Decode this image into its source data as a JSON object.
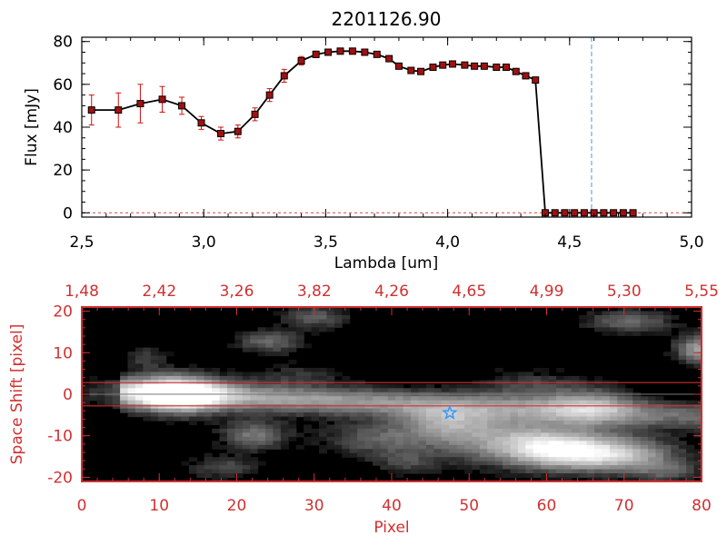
{
  "chart_data": [
    {
      "type": "line",
      "title": "2201126.90",
      "xlabel": "Lambda [um]",
      "ylabel": "Flux [mJy]",
      "xlim": [
        2.5,
        5.0
      ],
      "ylim": [
        -2,
        82
      ],
      "x_ticks": [
        "2.5",
        "3.0",
        "3.5",
        "4.0",
        "4.5",
        "5.0"
      ],
      "y_ticks": [
        "0",
        "20",
        "40",
        "60",
        "80"
      ],
      "reference_line": {
        "x": 4.59,
        "color": "#3aa0d8",
        "style": "dashed"
      },
      "zero_line": {
        "y": 0,
        "color": "#e04040",
        "style": "dashed"
      },
      "line_color": "#000000",
      "marker_color": "#a01010",
      "error_color": "#d01010",
      "series": [
        {
          "x": [
            2.54,
            2.65,
            2.74,
            2.83,
            2.91,
            2.99,
            3.07,
            3.14,
            3.21,
            3.27,
            3.33,
            3.4,
            3.46,
            3.51,
            3.56,
            3.61,
            3.66,
            3.71,
            3.76,
            3.8,
            3.85,
            3.89,
            3.94,
            3.98,
            4.02,
            4.07,
            4.11,
            4.15,
            4.2,
            4.24,
            4.28,
            4.32,
            4.36,
            4.4,
            4.44,
            4.48,
            4.52,
            4.56,
            4.6,
            4.64,
            4.68,
            4.72,
            4.76
          ],
          "y": [
            48,
            48,
            51,
            53,
            50,
            42,
            37,
            38,
            46,
            55,
            64,
            71,
            74,
            75,
            75.5,
            75.5,
            75,
            74,
            72,
            68.5,
            66.5,
            66,
            68,
            69,
            69.5,
            69,
            68.5,
            68.5,
            68,
            68,
            66,
            64,
            62,
            0,
            0,
            0,
            0,
            0,
            0,
            0,
            0,
            0,
            0
          ],
          "yerr": [
            7,
            8,
            9,
            6,
            4,
            3,
            3,
            3,
            3,
            3,
            3,
            2,
            1.5,
            1,
            1,
            1,
            1,
            1,
            1,
            1,
            1,
            1,
            1,
            1,
            1,
            1,
            1,
            1,
            1,
            1,
            1,
            1,
            1,
            0,
            0,
            0,
            0,
            0,
            0,
            0,
            0,
            0,
            0
          ]
        }
      ]
    },
    {
      "type": "heatmap",
      "xlabel": "Pixel",
      "ylabel": "Space Shift [pixel]",
      "xlim": [
        0,
        80
      ],
      "ylim": [
        -21,
        21
      ],
      "x_ticks": [
        "0",
        "10",
        "20",
        "30",
        "40",
        "50",
        "60",
        "70",
        "80"
      ],
      "y_ticks": [
        "-20",
        "-10",
        "0",
        "10",
        "20"
      ],
      "top_axis_label_values": [
        "1.48",
        "2.42",
        "3.26",
        "3.82",
        "4.26",
        "4.65",
        "4.99",
        "5.30",
        "5.55"
      ],
      "axis_color": "#d03030",
      "extraction_band": [
        -2.8,
        2.8
      ],
      "marker": {
        "x": 47.5,
        "y": -4.5,
        "shape": "star",
        "color": "#3399ff"
      },
      "colormap": "grayscale",
      "trace": {
        "center_x": 12,
        "center_y": 0,
        "slope_per_pixel": -0.08
      },
      "blobs": [
        {
          "x": 12,
          "y": 0,
          "amplitude": 1.0,
          "sx": 4,
          "sy": 3
        },
        {
          "x": 22,
          "y": -10,
          "amplitude": 0.4,
          "sx": 3,
          "sy": 2.5
        },
        {
          "x": 24,
          "y": 13,
          "amplitude": 0.35,
          "sx": 3,
          "sy": 2
        },
        {
          "x": 18,
          "y": -18,
          "amplitude": 0.25,
          "sx": 3,
          "sy": 2
        },
        {
          "x": 28,
          "y": 5,
          "amplitude": 0.15,
          "sx": 4,
          "sy": 2
        },
        {
          "x": 38,
          "y": -11,
          "amplitude": 0.3,
          "sx": 5,
          "sy": 3
        },
        {
          "x": 47,
          "y": -7,
          "amplitude": 0.4,
          "sx": 4,
          "sy": 3
        },
        {
          "x": 55,
          "y": -11,
          "amplitude": 0.5,
          "sx": 7,
          "sy": 4
        },
        {
          "x": 62,
          "y": -14,
          "amplitude": 0.75,
          "sx": 5,
          "sy": 3
        },
        {
          "x": 70,
          "y": -15,
          "amplitude": 0.6,
          "sx": 5,
          "sy": 3
        },
        {
          "x": 66,
          "y": -3,
          "amplitude": 0.45,
          "sx": 4,
          "sy": 3
        },
        {
          "x": 58,
          "y": 2,
          "amplitude": 0.2,
          "sx": 5,
          "sy": 3
        },
        {
          "x": 80,
          "y": 11,
          "amplitude": 0.55,
          "sx": 2,
          "sy": 2.5
        },
        {
          "x": 71,
          "y": 18,
          "amplitude": 0.35,
          "sx": 4,
          "sy": 2
        },
        {
          "x": 30,
          "y": 19,
          "amplitude": 0.3,
          "sx": 3,
          "sy": 2
        },
        {
          "x": 8,
          "y": 9,
          "amplitude": 0.2,
          "sx": 2,
          "sy": 2
        },
        {
          "x": 76,
          "y": -19,
          "amplitude": 0.25,
          "sx": 3,
          "sy": 2
        },
        {
          "x": 42,
          "y": -17,
          "amplitude": 0.2,
          "sx": 3,
          "sy": 2
        }
      ]
    }
  ]
}
